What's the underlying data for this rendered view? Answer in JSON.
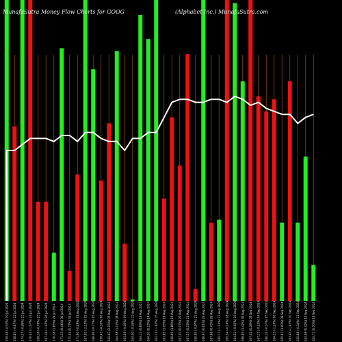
{
  "chart_data": {
    "type": "bar",
    "title_left": "MunafaSutra  Money Flow  Charts for GOOG",
    "title_right": "(Alphabet Inc.) MunafaSutra.com",
    "colors": {
      "up": "#22ee22",
      "down": "#ee1111",
      "line": "#ffffff",
      "grid": "#8a4a0a",
      "background": "#000000"
    },
    "ylim": [
      0,
      100
    ],
    "categories": [
      "159.58 (-0.33%) 19 Jul 2024",
      "158.83 (-0.47%) 22 Jul 2024",
      "174.37 (-0.86%) 23 Jul 2024",
      "170.44 (-1.67%) 24 Jul 2024",
      "169.16 (-0.76%) 25 Jul 2024",
      "167.28 (-1.12%) 26 Jul 2024",
      "170.38 (1.85%) 29 Jul 2024",
      "171.13 (0.44%) 30 Jul 2024",
      "172.45 (0.77%) 31 Jul 2024",
      "171.60 (-0.49%) 01 Aug 2024",
      "167.95 (-2.13%) 02 Aug 2024",
      "166.66 (-0.77%) 05 Aug 2024",
      "159.41 (-4.35%) 06 Aug 2024",
      "162.83 (2.15%) 07 Aug 2024",
      "164.58 (1.07%) 08 Aug 2024",
      "163.59 (-0.60%) 09 Aug 2024",
      "163.00 (-0.36%) 12 Aug 2024",
      "164.13 (0.69%) 13 Aug 2024",
      "164.50 (0.23%) 14 Aug 2024",
      "162.14 (-1.43%) 15 Aug 2024",
      "163.85 (1.05%) 16 Aug 2024",
      "166.90 (1.86%) 19 Aug 2024",
      "167.02 (0.07%) 20 Aug 2024",
      "167.57 (0.33%) 21 Aug 2024",
      "165.95 (-0.97%) 22 Aug 2024",
      "166.97 (0.61%) 23 Aug 2024",
      "167.68 (0.43%) 26 Aug 2024",
      "165.77 (-1.14%) 27 Aug 2024",
      "165.54 (-0.14%) 28 Aug 2024",
      "164.52 (-0.62%) 29 Aug 2024",
      "166.85 (1.42%) 30 Aug 2024",
      "167.32 (0.28%) 03 Sep 2024",
      "167.11 (-0.13%) 04 Sep 2024",
      "166.16 (-0.57%) 05 Sep 2024",
      "164.23 (-1.16%) 06 Sep 2024",
      "165.87 (1.00%) 09 Sep 2024",
      "163.43 (-1.47%) 10 Sep 2024",
      "162.88 (-0.34%) 11 Sep 2024",
      "163.56 (0.42%) 12 Sep 2024",
      "164.71 (0.70%) 13 Sep 2024"
    ],
    "series": [
      {
        "values": [
          100,
          58,
          100,
          100,
          33,
          33,
          16,
          84,
          10,
          42,
          100,
          77,
          40,
          59,
          83,
          19,
          0.5,
          95,
          87,
          100,
          34,
          61,
          45,
          82,
          4,
          100,
          26,
          27,
          100,
          99,
          73,
          100,
          68,
          63,
          67,
          26,
          73,
          26,
          48,
          12
        ],
        "directions": [
          "up",
          "down",
          "up",
          "down",
          "down",
          "down",
          "up",
          "up",
          "down",
          "down",
          "up",
          "up",
          "down",
          "down",
          "up",
          "down",
          "up",
          "up",
          "up",
          "up",
          "down",
          "down",
          "down",
          "down",
          "down",
          "up",
          "down",
          "up",
          "down",
          "up",
          "up",
          "down",
          "down",
          "down",
          "down",
          "up",
          "down",
          "up",
          "up",
          "up"
        ]
      },
      {
        "type": "line",
        "values": [
          50,
          50,
          52,
          54,
          54,
          54,
          53,
          55,
          55,
          53,
          56,
          56,
          54,
          53,
          53,
          50,
          54,
          54,
          56,
          56,
          61,
          66,
          67,
          67,
          66,
          66,
          67,
          67,
          66,
          68,
          67,
          65,
          66,
          64,
          63,
          62,
          62,
          59,
          61,
          62
        ]
      }
    ]
  }
}
